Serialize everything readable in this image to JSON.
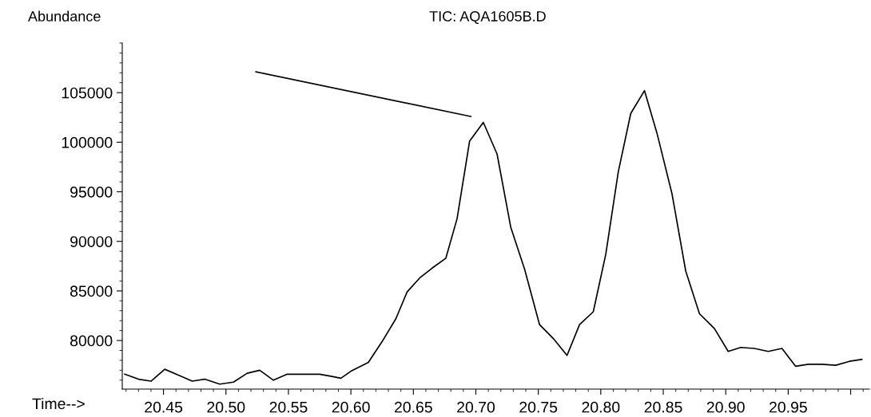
{
  "chart_data": {
    "type": "line",
    "title": "TIC: AQA1605B.D",
    "xlabel": "Time-->",
    "ylabel": "Abundance",
    "series": [
      {
        "color": "#000000",
        "x": [
          20.419,
          20.43,
          20.44,
          20.451,
          20.462,
          20.473,
          20.483,
          20.495,
          20.506,
          20.517,
          20.527,
          20.538,
          20.549,
          20.575,
          20.584,
          20.592,
          20.6,
          20.614,
          20.625,
          20.636,
          20.645,
          20.655,
          20.665,
          20.676,
          20.685,
          20.695,
          20.706,
          20.717,
          20.728,
          20.739,
          20.751,
          20.762,
          20.773,
          20.783,
          20.794,
          20.804,
          20.814,
          20.824,
          20.835,
          20.845,
          20.857,
          20.868,
          20.879,
          20.891,
          20.902,
          20.912,
          20.923,
          20.934,
          20.945,
          20.956,
          20.966,
          20.977,
          20.988,
          20.999,
          21.009
        ],
        "values": [
          76600,
          76100,
          75900,
          77100,
          76500,
          75900,
          76100,
          75600,
          75800,
          76700,
          77000,
          76000,
          76600,
          76600,
          76400,
          76200,
          76900,
          77800,
          79900,
          82200,
          84900,
          86300,
          87300,
          88300,
          92300,
          100100,
          102000,
          98800,
          91400,
          87200,
          81600,
          80200,
          78500,
          81600,
          82900,
          88700,
          97000,
          102900,
          105200,
          100900,
          94800,
          87000,
          82700,
          81200,
          78900,
          79300,
          79200,
          78900,
          79200,
          77400,
          77600,
          77600,
          77500,
          77900,
          78100
        ]
      },
      {
        "type": "line",
        "color": "#000000",
        "x": [
          20.524,
          20.696
        ],
        "values": [
          107100,
          102600
        ]
      }
    ],
    "xlim": [
      20.417,
      21.015
    ],
    "xticks": [
      20.45,
      {
        "value": 20.5,
        "label": "20.50"
      },
      20.55,
      {
        "value": 20.6,
        "label": "20.60"
      },
      20.65,
      {
        "value": 20.7,
        "label": "20.70"
      },
      20.75,
      {
        "value": 20.8,
        "label": "20.80"
      },
      20.85,
      {
        "value": 20.9,
        "label": "20.90"
      },
      20.95,
      {
        "value": 21.0,
        "label": null
      }
    ],
    "ylim": [
      75100,
      110000
    ],
    "yticks": [
      80000,
      85000,
      90000,
      95000,
      100000,
      105000
    ],
    "grid": false,
    "legend": false,
    "marker": "none",
    "line_style": "solid"
  }
}
